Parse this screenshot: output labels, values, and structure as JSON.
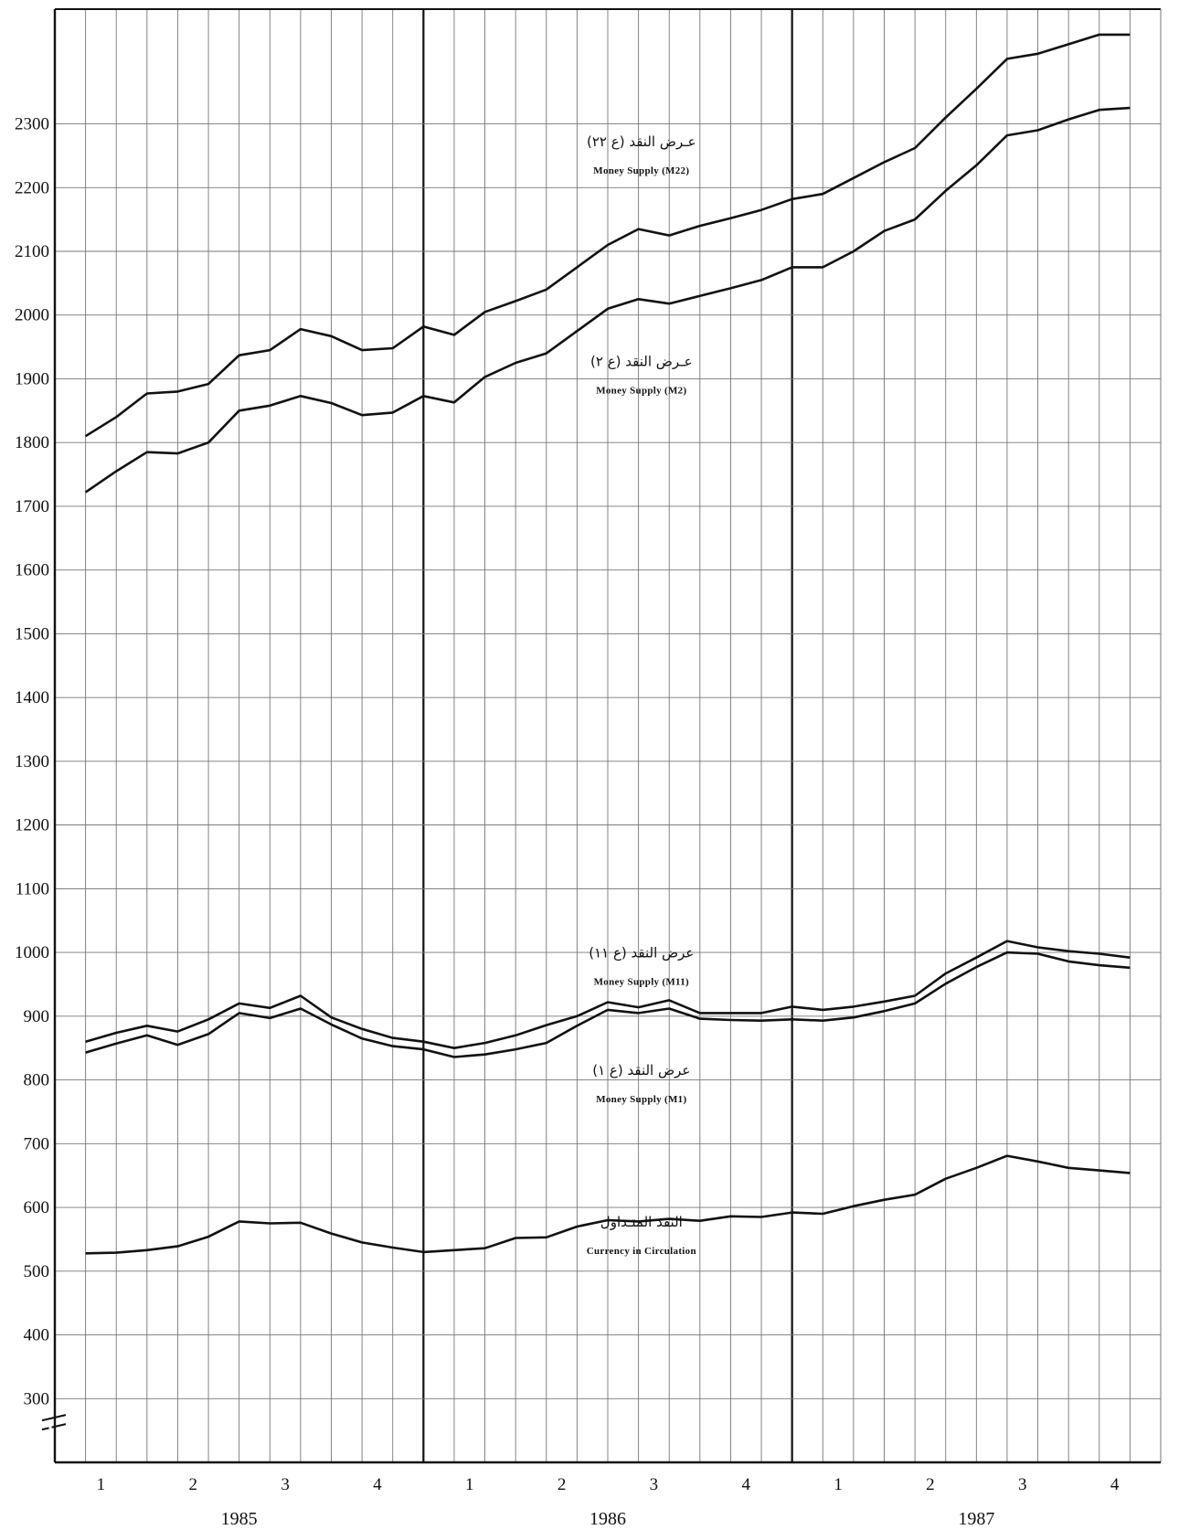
{
  "chart_data": {
    "type": "line",
    "title": "",
    "xlabel": "",
    "ylabel": "",
    "ylim": [
      200,
      2480
    ],
    "y_axis_break": true,
    "grid": true,
    "y_ticks": [
      "300",
      "400",
      "500",
      "600",
      "700",
      "800",
      "900",
      "1000",
      "1100",
      "1200",
      "1300",
      "1400",
      "1500",
      "1600",
      "1700",
      "1800",
      "1900",
      "2000",
      "2100",
      "2200",
      "2300"
    ],
    "quarter_labels": [
      "1",
      "2",
      "3",
      "4",
      "1",
      "2",
      "3",
      "4",
      "1",
      "2",
      "3",
      "4"
    ],
    "years": [
      "1985",
      "1986",
      "1987"
    ],
    "x_months": 36,
    "series": [
      {
        "name_ar": "عـرض النقد (ع ٢٢)",
        "name": "Money Supply (M22)",
        "values": [
          1810,
          1840,
          1877,
          1880,
          1892,
          1937,
          1945,
          1978,
          1967,
          1945,
          1948,
          1982,
          1969,
          2005,
          2022,
          2040,
          2075,
          2110,
          2135,
          2125,
          2140,
          2152,
          2165,
          2182,
          2190,
          2215,
          2240,
          2262,
          2310,
          2355,
          2402,
          2410,
          2425,
          2440,
          2440
        ]
      },
      {
        "name_ar": "عـرض النقد (ع ٢)",
        "name": "Money Supply (M2)",
        "values": [
          1722,
          1755,
          1785,
          1783,
          1800,
          1850,
          1858,
          1873,
          1862,
          1843,
          1847,
          1873,
          1863,
          1903,
          1925,
          1940,
          1975,
          2010,
          2025,
          2018,
          2030,
          2042,
          2055,
          2075,
          2075,
          2100,
          2132,
          2150,
          2195,
          2235,
          2282,
          2290,
          2307,
          2322,
          2325
        ]
      },
      {
        "name_ar": "عرض النقد (ع ١١)",
        "name": "Money Supply (M11)",
        "values": [
          860,
          874,
          885,
          876,
          895,
          920,
          913,
          932,
          898,
          880,
          866,
          860,
          850,
          858,
          870,
          886,
          900,
          922,
          914,
          925,
          905,
          905,
          905,
          915,
          910,
          915,
          923,
          932,
          967,
          992,
          1018,
          1008,
          1002,
          998,
          992
        ]
      },
      {
        "name_ar": "عرض النقد (ع ١)",
        "name": "Money Supply (M1)",
        "values": [
          843,
          857,
          870,
          855,
          872,
          905,
          897,
          912,
          887,
          865,
          853,
          848,
          836,
          840,
          848,
          858,
          885,
          910,
          905,
          912,
          896,
          894,
          893,
          895,
          893,
          898,
          908,
          920,
          951,
          977,
          1000,
          998,
          986,
          980,
          976
        ]
      },
      {
        "name_ar": "النقد المتـداول",
        "name": "Currency in Circulation",
        "values": [
          528,
          529,
          533,
          539,
          554,
          578,
          575,
          576,
          559,
          545,
          537,
          530,
          533,
          536,
          552,
          553,
          570,
          580,
          578,
          582,
          579,
          586,
          585,
          592,
          590,
          602,
          612,
          620,
          645,
          662,
          681,
          672,
          662,
          658,
          654
        ]
      }
    ]
  }
}
